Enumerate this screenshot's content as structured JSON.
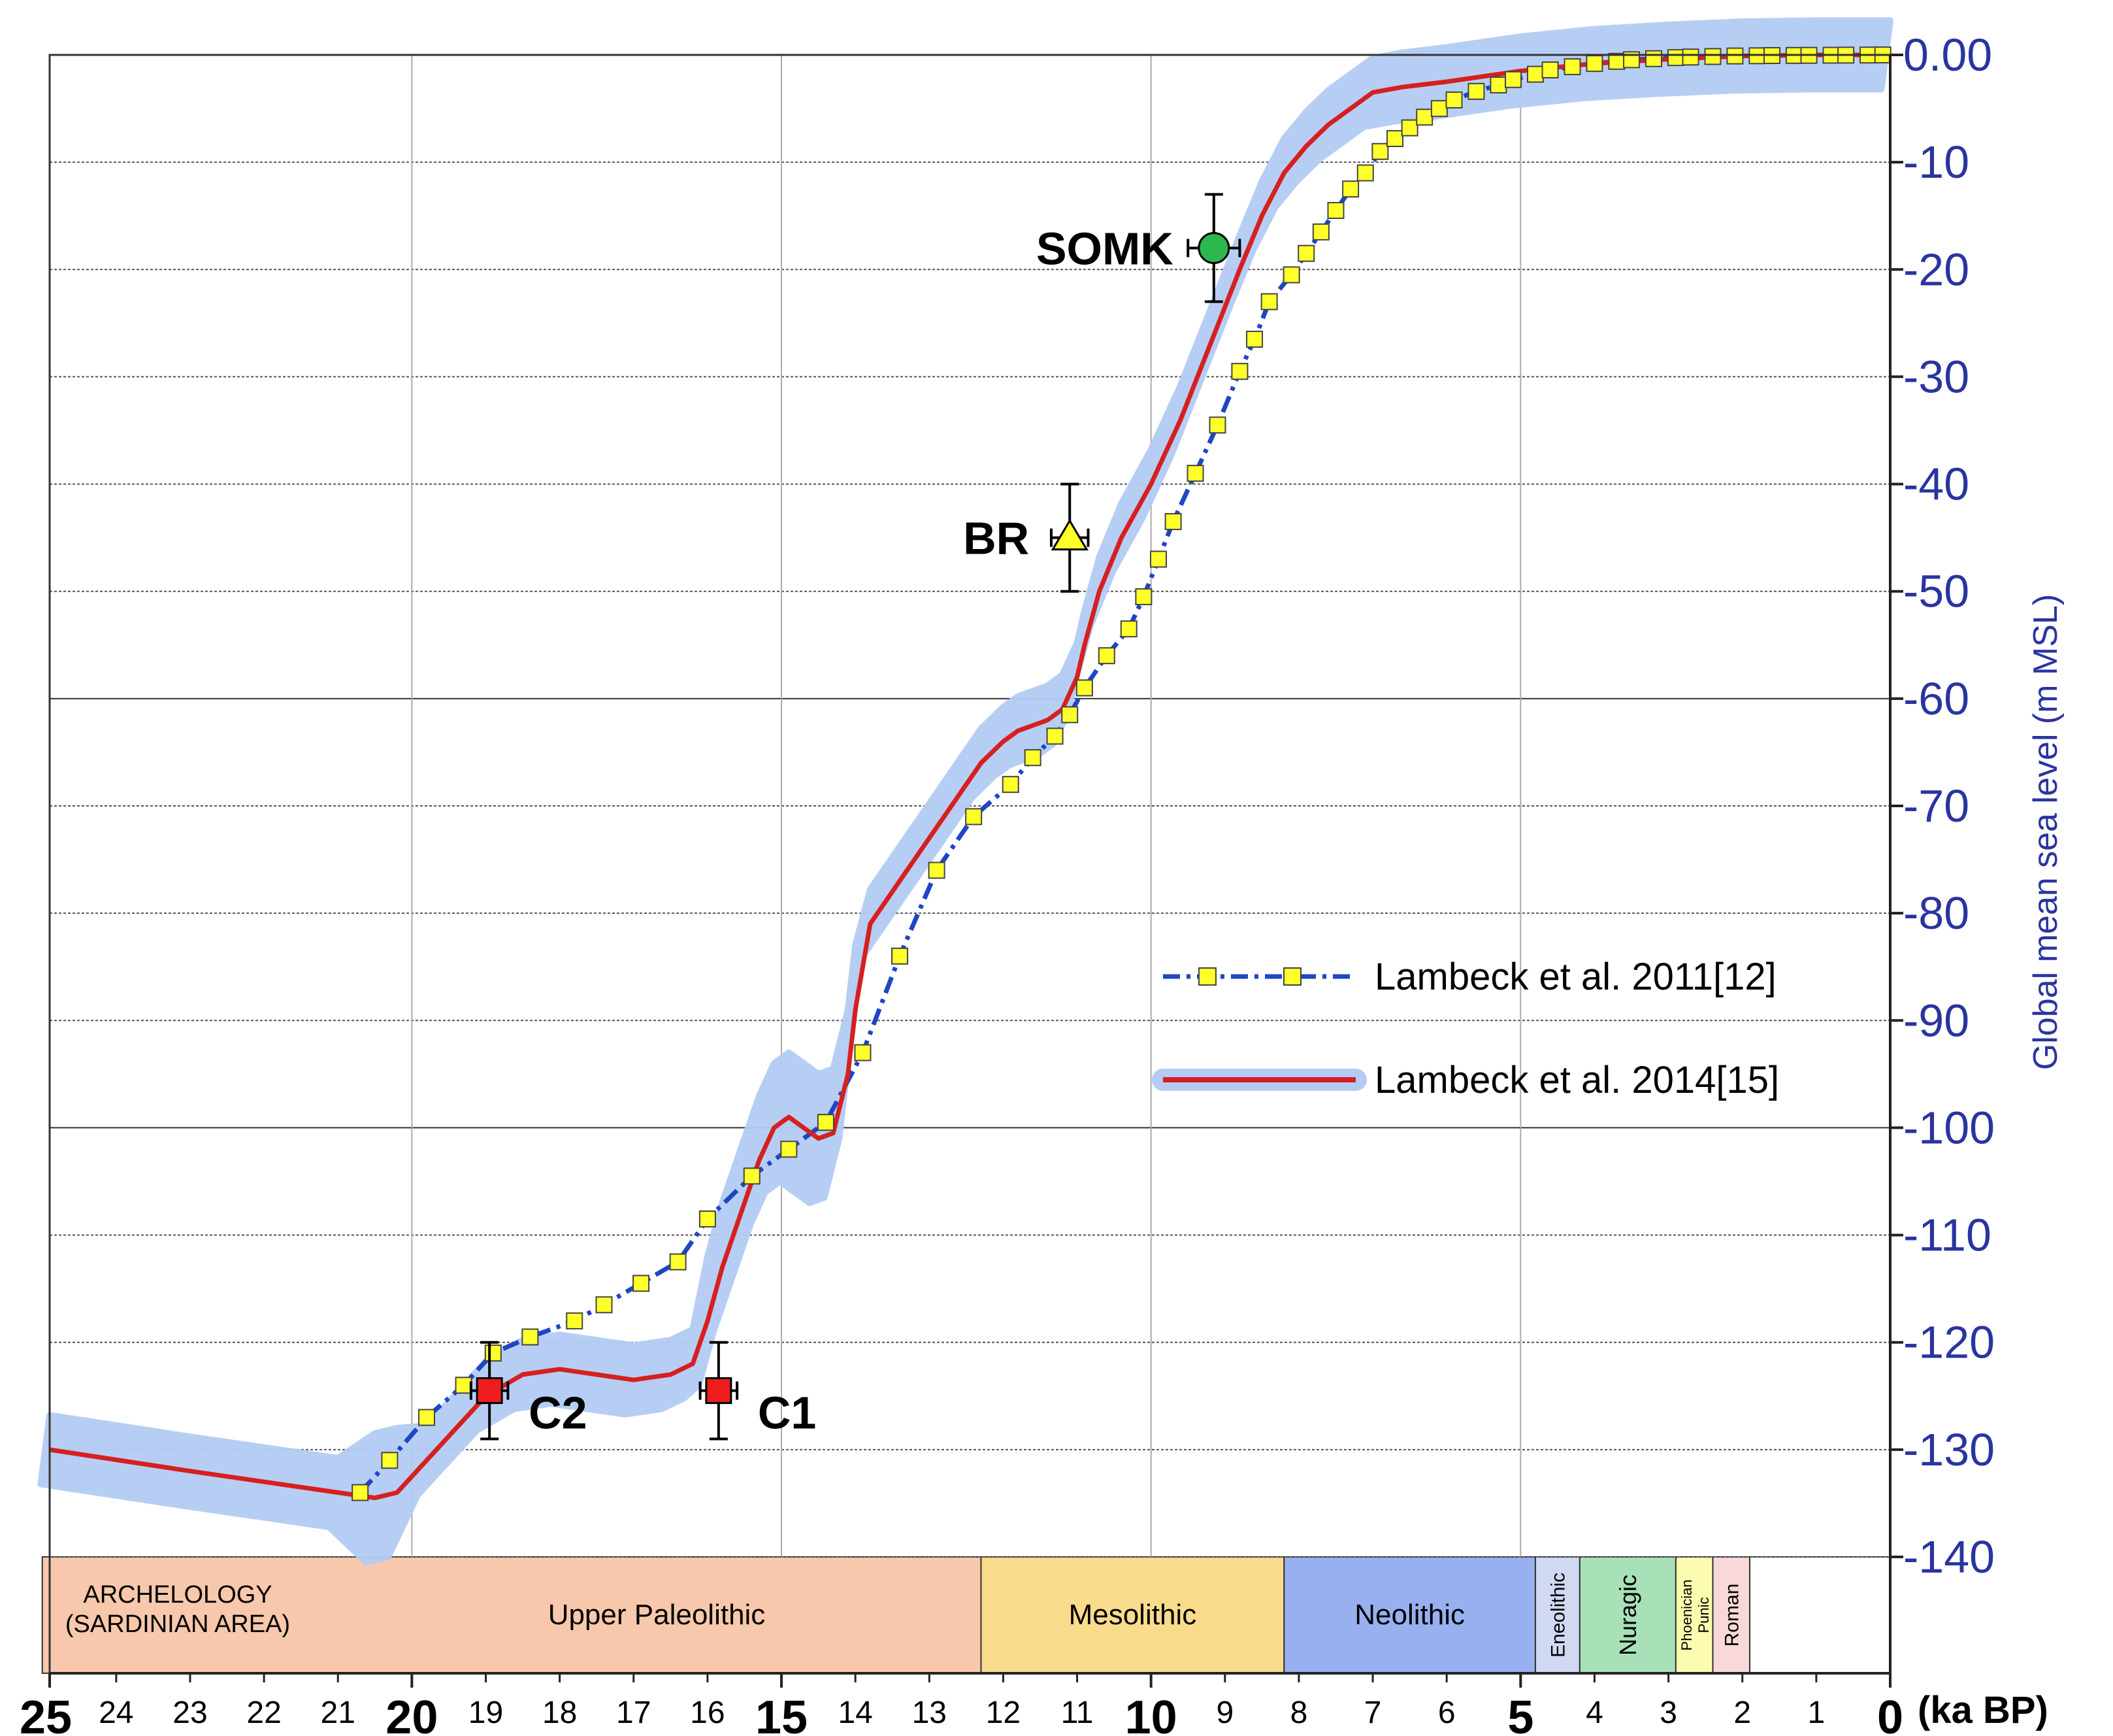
{
  "colors": {
    "axis_blue": "#2a34a0",
    "band": "#b4ccf4",
    "red_line": "#d62020",
    "blue_dash": "#1e46c4",
    "marker_yellow": "#ffff2a",
    "sample_red": "#ee1c1c",
    "sample_green": "#2cb84c",
    "archaeology_red": "#d42020"
  },
  "chart_data": {
    "type": "line",
    "x_label": "(ka BP)",
    "y_label": "Global mean sea level (m MSL)",
    "xlim": [
      25,
      0
    ],
    "ylim": [
      -140,
      0
    ],
    "x_ticks_major": [
      "25",
      "20",
      "15",
      "10",
      "5",
      "0"
    ],
    "x_ticks_minor": [
      "24",
      "23",
      "22",
      "21",
      "19",
      "18",
      "17",
      "16",
      "14",
      "13",
      "12",
      "11",
      "9",
      "8",
      "7",
      "6",
      "4",
      "3",
      "2",
      "1"
    ],
    "y_ticks": [
      "0.00",
      "-10",
      "-20",
      "-30",
      "-40",
      "-50",
      "-60",
      "-70",
      "-80",
      "-90",
      "-100",
      "-110",
      "-120",
      "-130",
      "-140"
    ],
    "series": [
      {
        "name": "Lambeck et al. 2011[12]",
        "style": "dash-dot with square markers",
        "x": [
          20.7,
          20.3,
          19.8,
          19.3,
          18.9,
          18.4,
          17.8,
          17.4,
          16.9,
          16.4,
          16.0,
          15.4,
          14.9,
          14.4,
          13.9,
          13.4,
          12.9,
          12.4,
          11.9,
          11.6,
          11.3,
          11.1,
          10.9,
          10.6,
          10.3,
          10.1,
          9.9,
          9.7,
          9.4,
          9.1,
          8.8,
          8.6,
          8.4,
          8.1,
          7.9,
          7.7,
          7.5,
          7.3,
          7.1,
          6.9,
          6.7,
          6.5,
          6.3,
          6.1,
          5.9,
          5.6,
          5.3,
          5.1,
          4.8,
          4.6,
          4.3,
          4.0,
          3.7,
          3.5,
          3.2,
          2.9,
          2.7,
          2.4,
          2.1,
          1.8,
          1.6,
          1.3,
          1.1,
          0.8,
          0.6,
          0.3,
          0.1
        ],
        "y": [
          -134,
          -131,
          -127,
          -124,
          -121,
          -119.5,
          -118,
          -116.5,
          -114.5,
          -112.5,
          -108.5,
          -104.5,
          -102,
          -99.5,
          -93,
          -84,
          -76,
          -71,
          -68,
          -65.5,
          -63.5,
          -61.5,
          -59,
          -56,
          -53.5,
          -50.5,
          -47,
          -43.5,
          -39,
          -34.5,
          -29.5,
          -26.5,
          -23,
          -20.5,
          -18.5,
          -16.5,
          -14.5,
          -12.5,
          -11,
          -9,
          -7.8,
          -6.8,
          -5.8,
          -5,
          -4.2,
          -3.4,
          -2.8,
          -2.3,
          -1.8,
          -1.4,
          -1.1,
          -0.8,
          -0.6,
          -0.45,
          -0.35,
          -0.25,
          -0.2,
          -0.15,
          -0.1,
          -0.08,
          -0.06,
          -0.05,
          -0.04,
          -0.03,
          -0.02,
          -0.01,
          0
        ]
      },
      {
        "name": "Lambeck et al. 2014[15]",
        "style": "solid red line with light blue uncertainty band",
        "x": [
          24.9,
          23.0,
          21.0,
          20.5,
          20.2,
          19.8,
          19.4,
          19.0,
          18.5,
          18.0,
          17.5,
          17.0,
          16.5,
          16.2,
          16.0,
          15.8,
          15.6,
          15.3,
          15.1,
          14.9,
          14.7,
          14.5,
          14.3,
          14.1,
          14.0,
          13.8,
          13.4,
          13.0,
          12.6,
          12.3,
          12.0,
          11.8,
          11.6,
          11.4,
          11.2,
          11.0,
          10.9,
          10.7,
          10.4,
          10.0,
          9.6,
          9.2,
          8.8,
          8.5,
          8.2,
          7.9,
          7.6,
          7.3,
          7.0,
          6.6,
          6.0,
          5.0,
          4.0,
          3.0,
          2.0,
          1.0,
          0.0
        ],
        "y": [
          -130,
          -132,
          -134,
          -134.5,
          -134,
          -131,
          -128,
          -125,
          -123,
          -122.5,
          -123,
          -123.5,
          -123,
          -122,
          -118,
          -113,
          -109,
          -103,
          -100,
          -99,
          -100,
          -101,
          -100.5,
          -95,
          -89,
          -81,
          -77,
          -73,
          -69,
          -66,
          -64,
          -63,
          -62.5,
          -62,
          -61,
          -58,
          -55,
          -50,
          -45,
          -40,
          -34,
          -27,
          -20,
          -15,
          -11,
          -8.5,
          -6.5,
          -5,
          -3.5,
          -3,
          -2.5,
          -1.5,
          -0.8,
          -0.4,
          -0.1,
          0,
          0
        ]
      }
    ],
    "samples": [
      {
        "label": "SOMK",
        "marker": "circle",
        "x": 9.15,
        "y": -18,
        "xerr": 0.35,
        "yerr": 5
      },
      {
        "label": "BR",
        "marker": "triangle",
        "x": 11.1,
        "y": -45,
        "xerr": 0.25,
        "yerr": 5
      },
      {
        "label": "C2",
        "marker": "square",
        "x": 18.95,
        "y": -124.5,
        "xerr": 0.25,
        "yerr": 4.5
      },
      {
        "label": "C1",
        "marker": "square",
        "x": 15.85,
        "y": -124.5,
        "xerr": 0.25,
        "yerr": 4.5
      }
    ],
    "legend": {
      "placement": "center-right",
      "entries": [
        "Lambeck et al. 2011[12]",
        "Lambeck et al. 2014[15]"
      ]
    },
    "periods": {
      "title_line1": "ARCHELOLOGY",
      "title_line2": "(SARDINIAN AREA)",
      "items": [
        {
          "label": "Upper Paleolithic",
          "start": 25,
          "end": 12.3,
          "color": "#f8c8ac"
        },
        {
          "label": "Mesolithic",
          "start": 12.3,
          "end": 8.2,
          "color": "#f8dc8c"
        },
        {
          "label": "Neolithic",
          "start": 8.2,
          "end": 4.8,
          "color": "#98b0f0"
        },
        {
          "label": "Eneolithic",
          "start": 4.8,
          "end": 4.2,
          "color": "#d0d8f4"
        },
        {
          "label": "Nuragic",
          "start": 4.2,
          "end": 2.9,
          "color": "#a8e0b8"
        },
        {
          "label": "Phoenician Punic",
          "label_line1": "Phoenician",
          "label_line2": "Punic",
          "start": 2.9,
          "end": 2.4,
          "color": "#fcfcb0"
        },
        {
          "label": "Roman",
          "start": 2.4,
          "end": 1.9,
          "color": "#f8d8d8"
        }
      ]
    }
  }
}
